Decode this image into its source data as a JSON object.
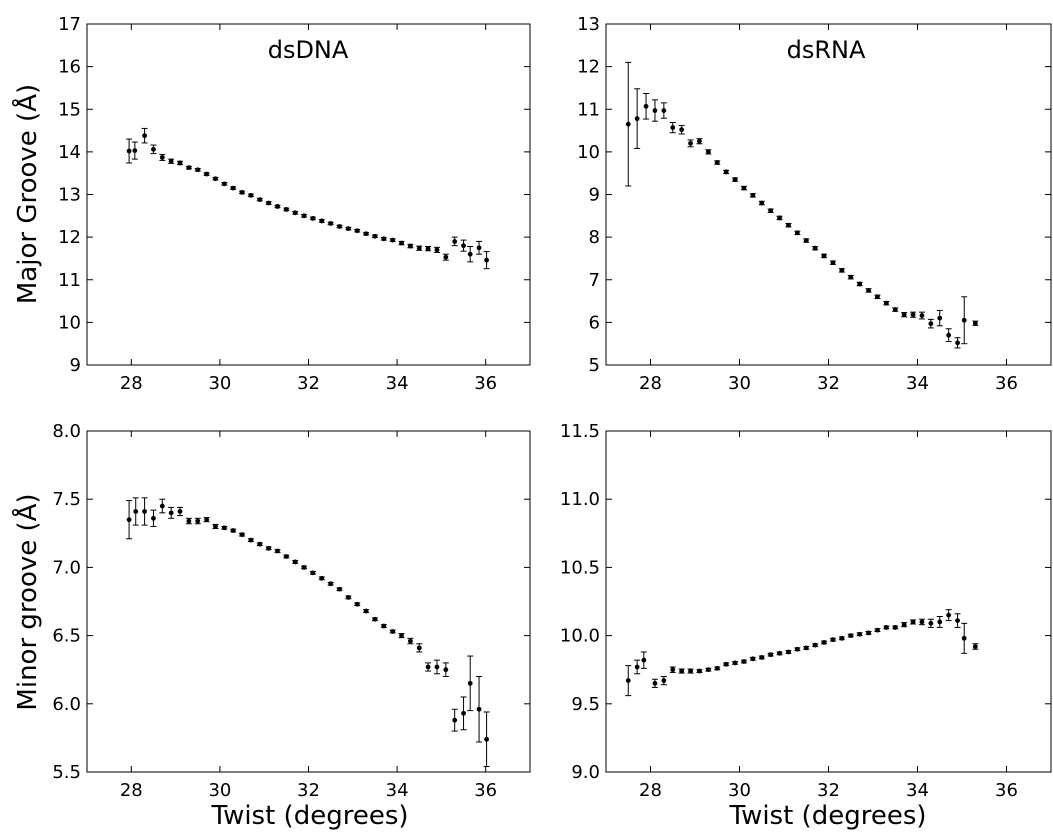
{
  "chart_data": [
    {
      "type": "scatter",
      "title": "dsDNA",
      "xlabel": "",
      "ylabel": "Major Groove (Å)",
      "xlim": [
        27,
        37
      ],
      "ylim": [
        9,
        17
      ],
      "xticks": [
        28,
        30,
        32,
        34,
        36
      ],
      "yticks": [
        9,
        10,
        11,
        12,
        13,
        14,
        15,
        16,
        17
      ],
      "ytick_labels": [
        "9",
        "10",
        "11",
        "12",
        "13",
        "14",
        "15",
        "16",
        "17"
      ],
      "errorbars": true,
      "points": [
        {
          "x": 27.95,
          "y": 14.02,
          "err": 0.28
        },
        {
          "x": 28.08,
          "y": 14.03,
          "err": 0.2
        },
        {
          "x": 28.3,
          "y": 14.38,
          "err": 0.17
        },
        {
          "x": 28.5,
          "y": 14.06,
          "err": 0.1
        },
        {
          "x": 28.7,
          "y": 13.87,
          "err": 0.07
        },
        {
          "x": 28.9,
          "y": 13.78,
          "err": 0.05
        },
        {
          "x": 29.1,
          "y": 13.74,
          "err": 0.04
        },
        {
          "x": 29.3,
          "y": 13.63,
          "err": 0.03
        },
        {
          "x": 29.5,
          "y": 13.58,
          "err": 0.03
        },
        {
          "x": 29.7,
          "y": 13.48,
          "err": 0.03
        },
        {
          "x": 29.9,
          "y": 13.37,
          "err": 0.03
        },
        {
          "x": 30.1,
          "y": 13.25,
          "err": 0.03
        },
        {
          "x": 30.3,
          "y": 13.15,
          "err": 0.03
        },
        {
          "x": 30.5,
          "y": 13.05,
          "err": 0.03
        },
        {
          "x": 30.7,
          "y": 12.98,
          "err": 0.03
        },
        {
          "x": 30.9,
          "y": 12.88,
          "err": 0.03
        },
        {
          "x": 31.1,
          "y": 12.8,
          "err": 0.03
        },
        {
          "x": 31.3,
          "y": 12.72,
          "err": 0.03
        },
        {
          "x": 31.5,
          "y": 12.65,
          "err": 0.03
        },
        {
          "x": 31.7,
          "y": 12.57,
          "err": 0.03
        },
        {
          "x": 31.9,
          "y": 12.5,
          "err": 0.03
        },
        {
          "x": 32.1,
          "y": 12.44,
          "err": 0.03
        },
        {
          "x": 32.3,
          "y": 12.38,
          "err": 0.03
        },
        {
          "x": 32.5,
          "y": 12.32,
          "err": 0.03
        },
        {
          "x": 32.7,
          "y": 12.25,
          "err": 0.03
        },
        {
          "x": 32.9,
          "y": 12.2,
          "err": 0.03
        },
        {
          "x": 33.1,
          "y": 12.15,
          "err": 0.03
        },
        {
          "x": 33.3,
          "y": 12.08,
          "err": 0.03
        },
        {
          "x": 33.5,
          "y": 12.02,
          "err": 0.03
        },
        {
          "x": 33.7,
          "y": 11.96,
          "err": 0.03
        },
        {
          "x": 33.9,
          "y": 11.93,
          "err": 0.03
        },
        {
          "x": 34.1,
          "y": 11.86,
          "err": 0.04
        },
        {
          "x": 34.3,
          "y": 11.79,
          "err": 0.04
        },
        {
          "x": 34.5,
          "y": 11.74,
          "err": 0.05
        },
        {
          "x": 34.7,
          "y": 11.73,
          "err": 0.05
        },
        {
          "x": 34.9,
          "y": 11.7,
          "err": 0.06
        },
        {
          "x": 35.1,
          "y": 11.53,
          "err": 0.07
        },
        {
          "x": 35.3,
          "y": 11.9,
          "err": 0.1
        },
        {
          "x": 35.5,
          "y": 11.8,
          "err": 0.13
        },
        {
          "x": 35.65,
          "y": 11.6,
          "err": 0.18
        },
        {
          "x": 35.85,
          "y": 11.75,
          "err": 0.15
        },
        {
          "x": 36.02,
          "y": 11.46,
          "err": 0.2
        }
      ]
    },
    {
      "type": "scatter",
      "title": "dsRNA",
      "xlabel": "",
      "ylabel": "",
      "xlim": [
        27,
        37
      ],
      "ylim": [
        5,
        13
      ],
      "xticks": [
        28,
        30,
        32,
        34,
        36
      ],
      "yticks": [
        5,
        6,
        7,
        8,
        9,
        10,
        11,
        12,
        13
      ],
      "ytick_labels": [
        "5",
        "6",
        "7",
        "8",
        "9",
        "10",
        "11",
        "12",
        "13"
      ],
      "errorbars": true,
      "points": [
        {
          "x": 27.5,
          "y": 10.65,
          "err": 1.45
        },
        {
          "x": 27.7,
          "y": 10.78,
          "err": 0.7
        },
        {
          "x": 27.9,
          "y": 11.07,
          "err": 0.3
        },
        {
          "x": 28.1,
          "y": 10.97,
          "err": 0.25
        },
        {
          "x": 28.3,
          "y": 10.97,
          "err": 0.18
        },
        {
          "x": 28.5,
          "y": 10.57,
          "err": 0.12
        },
        {
          "x": 28.7,
          "y": 10.52,
          "err": 0.1
        },
        {
          "x": 28.9,
          "y": 10.2,
          "err": 0.08
        },
        {
          "x": 29.1,
          "y": 10.25,
          "err": 0.06
        },
        {
          "x": 29.3,
          "y": 10.0,
          "err": 0.05
        },
        {
          "x": 29.5,
          "y": 9.75,
          "err": 0.04
        },
        {
          "x": 29.7,
          "y": 9.53,
          "err": 0.04
        },
        {
          "x": 29.9,
          "y": 9.35,
          "err": 0.04
        },
        {
          "x": 30.1,
          "y": 9.15,
          "err": 0.04
        },
        {
          "x": 30.3,
          "y": 8.98,
          "err": 0.04
        },
        {
          "x": 30.5,
          "y": 8.8,
          "err": 0.04
        },
        {
          "x": 30.7,
          "y": 8.62,
          "err": 0.04
        },
        {
          "x": 30.9,
          "y": 8.45,
          "err": 0.04
        },
        {
          "x": 31.1,
          "y": 8.28,
          "err": 0.04
        },
        {
          "x": 31.3,
          "y": 8.1,
          "err": 0.04
        },
        {
          "x": 31.5,
          "y": 7.92,
          "err": 0.04
        },
        {
          "x": 31.7,
          "y": 7.74,
          "err": 0.04
        },
        {
          "x": 31.9,
          "y": 7.56,
          "err": 0.04
        },
        {
          "x": 32.1,
          "y": 7.4,
          "err": 0.04
        },
        {
          "x": 32.3,
          "y": 7.22,
          "err": 0.04
        },
        {
          "x": 32.5,
          "y": 7.06,
          "err": 0.04
        },
        {
          "x": 32.7,
          "y": 6.9,
          "err": 0.04
        },
        {
          "x": 32.9,
          "y": 6.75,
          "err": 0.04
        },
        {
          "x": 33.1,
          "y": 6.6,
          "err": 0.04
        },
        {
          "x": 33.3,
          "y": 6.45,
          "err": 0.04
        },
        {
          "x": 33.5,
          "y": 6.3,
          "err": 0.04
        },
        {
          "x": 33.7,
          "y": 6.18,
          "err": 0.05
        },
        {
          "x": 33.9,
          "y": 6.18,
          "err": 0.06
        },
        {
          "x": 34.1,
          "y": 6.16,
          "err": 0.08
        },
        {
          "x": 34.3,
          "y": 5.97,
          "err": 0.1
        },
        {
          "x": 34.5,
          "y": 6.1,
          "err": 0.18
        },
        {
          "x": 34.7,
          "y": 5.7,
          "err": 0.15
        },
        {
          "x": 34.9,
          "y": 5.52,
          "err": 0.12
        },
        {
          "x": 35.05,
          "y": 6.05,
          "err": 0.55
        },
        {
          "x": 35.3,
          "y": 5.98,
          "err": 0.05
        }
      ]
    },
    {
      "type": "scatter",
      "title": "",
      "xlabel": "Twist (degrees)",
      "ylabel": "Minor groove (Å)",
      "xlim": [
        27,
        37
      ],
      "ylim": [
        5.5,
        8.0
      ],
      "xticks": [
        28,
        30,
        32,
        34,
        36
      ],
      "yticks": [
        5.5,
        6.0,
        6.5,
        7.0,
        7.5,
        8.0
      ],
      "ytick_labels": [
        "5.5",
        "6.0",
        "6.5",
        "7.0",
        "7.5",
        "8.0"
      ],
      "errorbars": true,
      "points": [
        {
          "x": 27.95,
          "y": 7.35,
          "err": 0.14
        },
        {
          "x": 28.1,
          "y": 7.41,
          "err": 0.1
        },
        {
          "x": 28.3,
          "y": 7.41,
          "err": 0.1
        },
        {
          "x": 28.5,
          "y": 7.36,
          "err": 0.06
        },
        {
          "x": 28.7,
          "y": 7.45,
          "err": 0.05
        },
        {
          "x": 28.9,
          "y": 7.4,
          "err": 0.04
        },
        {
          "x": 29.1,
          "y": 7.41,
          "err": 0.03
        },
        {
          "x": 29.3,
          "y": 7.34,
          "err": 0.02
        },
        {
          "x": 29.5,
          "y": 7.34,
          "err": 0.02
        },
        {
          "x": 29.7,
          "y": 7.35,
          "err": 0.015
        },
        {
          "x": 29.9,
          "y": 7.3,
          "err": 0.015
        },
        {
          "x": 30.1,
          "y": 7.29,
          "err": 0.01
        },
        {
          "x": 30.3,
          "y": 7.27,
          "err": 0.01
        },
        {
          "x": 30.5,
          "y": 7.24,
          "err": 0.01
        },
        {
          "x": 30.7,
          "y": 7.2,
          "err": 0.01
        },
        {
          "x": 30.9,
          "y": 7.17,
          "err": 0.01
        },
        {
          "x": 31.1,
          "y": 7.14,
          "err": 0.01
        },
        {
          "x": 31.3,
          "y": 7.12,
          "err": 0.01
        },
        {
          "x": 31.5,
          "y": 7.08,
          "err": 0.01
        },
        {
          "x": 31.7,
          "y": 7.04,
          "err": 0.01
        },
        {
          "x": 31.9,
          "y": 7.0,
          "err": 0.01
        },
        {
          "x": 32.1,
          "y": 6.96,
          "err": 0.01
        },
        {
          "x": 32.3,
          "y": 6.92,
          "err": 0.01
        },
        {
          "x": 32.5,
          "y": 6.88,
          "err": 0.01
        },
        {
          "x": 32.7,
          "y": 6.84,
          "err": 0.01
        },
        {
          "x": 32.9,
          "y": 6.78,
          "err": 0.01
        },
        {
          "x": 33.1,
          "y": 6.73,
          "err": 0.01
        },
        {
          "x": 33.3,
          "y": 6.68,
          "err": 0.01
        },
        {
          "x": 33.5,
          "y": 6.62,
          "err": 0.01
        },
        {
          "x": 33.7,
          "y": 6.57,
          "err": 0.01
        },
        {
          "x": 33.9,
          "y": 6.53,
          "err": 0.01
        },
        {
          "x": 34.1,
          "y": 6.5,
          "err": 0.015
        },
        {
          "x": 34.3,
          "y": 6.46,
          "err": 0.02
        },
        {
          "x": 34.5,
          "y": 6.41,
          "err": 0.03
        },
        {
          "x": 34.7,
          "y": 6.27,
          "err": 0.03
        },
        {
          "x": 34.9,
          "y": 6.27,
          "err": 0.05
        },
        {
          "x": 35.1,
          "y": 6.25,
          "err": 0.05
        },
        {
          "x": 35.3,
          "y": 5.88,
          "err": 0.08
        },
        {
          "x": 35.5,
          "y": 5.93,
          "err": 0.12
        },
        {
          "x": 35.65,
          "y": 6.15,
          "err": 0.2
        },
        {
          "x": 35.85,
          "y": 5.96,
          "err": 0.24
        },
        {
          "x": 36.02,
          "y": 5.74,
          "err": 0.2
        }
      ]
    },
    {
      "type": "scatter",
      "title": "",
      "xlabel": "Twist (degrees)",
      "ylabel": "",
      "xlim": [
        27,
        37
      ],
      "ylim": [
        9.0,
        11.5
      ],
      "xticks": [
        28,
        30,
        32,
        34,
        36
      ],
      "yticks": [
        9.0,
        9.5,
        10.0,
        10.5,
        11.0,
        11.5
      ],
      "ytick_labels": [
        "9.0",
        "9.5",
        "10.0",
        "10.5",
        "11.0",
        "11.5"
      ],
      "errorbars": true,
      "points": [
        {
          "x": 27.5,
          "y": 9.67,
          "err": 0.11
        },
        {
          "x": 27.7,
          "y": 9.77,
          "err": 0.05
        },
        {
          "x": 27.85,
          "y": 9.82,
          "err": 0.06
        },
        {
          "x": 28.1,
          "y": 9.65,
          "err": 0.03
        },
        {
          "x": 28.3,
          "y": 9.67,
          "err": 0.03
        },
        {
          "x": 28.5,
          "y": 9.75,
          "err": 0.02
        },
        {
          "x": 28.7,
          "y": 9.74,
          "err": 0.015
        },
        {
          "x": 28.9,
          "y": 9.74,
          "err": 0.015
        },
        {
          "x": 29.1,
          "y": 9.74,
          "err": 0.01
        },
        {
          "x": 29.3,
          "y": 9.75,
          "err": 0.01
        },
        {
          "x": 29.5,
          "y": 9.76,
          "err": 0.01
        },
        {
          "x": 29.7,
          "y": 9.79,
          "err": 0.01
        },
        {
          "x": 29.9,
          "y": 9.8,
          "err": 0.01
        },
        {
          "x": 30.1,
          "y": 9.81,
          "err": 0.01
        },
        {
          "x": 30.3,
          "y": 9.83,
          "err": 0.01
        },
        {
          "x": 30.5,
          "y": 9.84,
          "err": 0.01
        },
        {
          "x": 30.7,
          "y": 9.86,
          "err": 0.01
        },
        {
          "x": 30.9,
          "y": 9.87,
          "err": 0.01
        },
        {
          "x": 31.1,
          "y": 9.88,
          "err": 0.01
        },
        {
          "x": 31.3,
          "y": 9.9,
          "err": 0.01
        },
        {
          "x": 31.5,
          "y": 9.91,
          "err": 0.01
        },
        {
          "x": 31.7,
          "y": 9.93,
          "err": 0.01
        },
        {
          "x": 31.9,
          "y": 9.95,
          "err": 0.01
        },
        {
          "x": 32.1,
          "y": 9.97,
          "err": 0.01
        },
        {
          "x": 32.3,
          "y": 9.98,
          "err": 0.01
        },
        {
          "x": 32.5,
          "y": 10.0,
          "err": 0.01
        },
        {
          "x": 32.7,
          "y": 10.01,
          "err": 0.01
        },
        {
          "x": 32.9,
          "y": 10.02,
          "err": 0.01
        },
        {
          "x": 33.1,
          "y": 10.04,
          "err": 0.01
        },
        {
          "x": 33.3,
          "y": 10.06,
          "err": 0.01
        },
        {
          "x": 33.5,
          "y": 10.06,
          "err": 0.01
        },
        {
          "x": 33.7,
          "y": 10.08,
          "err": 0.015
        },
        {
          "x": 33.9,
          "y": 10.1,
          "err": 0.015
        },
        {
          "x": 34.1,
          "y": 10.1,
          "err": 0.02
        },
        {
          "x": 34.3,
          "y": 10.09,
          "err": 0.03
        },
        {
          "x": 34.5,
          "y": 10.1,
          "err": 0.04
        },
        {
          "x": 34.7,
          "y": 10.15,
          "err": 0.04
        },
        {
          "x": 34.9,
          "y": 10.11,
          "err": 0.05
        },
        {
          "x": 35.05,
          "y": 9.98,
          "err": 0.11
        },
        {
          "x": 35.3,
          "y": 9.92,
          "err": 0.02
        }
      ]
    }
  ]
}
